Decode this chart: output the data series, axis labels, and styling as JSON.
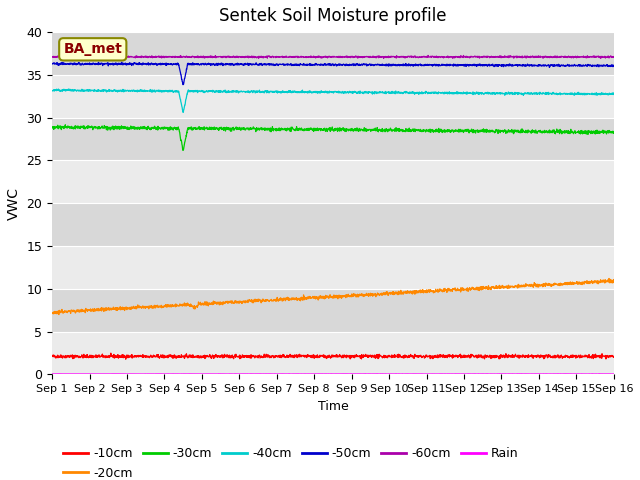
{
  "title": "Sentek Soil Moisture profile",
  "xlabel": "Time",
  "ylabel": "VWC",
  "annotation": "BA_met",
  "ylim": [
    0,
    40
  ],
  "xlim": [
    0,
    15
  ],
  "xtick_labels": [
    "Sep 1",
    "Sep 2",
    "Sep 3",
    "Sep 4",
    "Sep 5",
    "Sep 6",
    "Sep 7",
    "Sep 8",
    "Sep 9",
    "Sep 10",
    "Sep 11",
    "Sep 12",
    "Sep 13",
    "Sep 14",
    "Sep 15",
    "Sep 16"
  ],
  "ytick_vals": [
    0,
    5,
    10,
    15,
    20,
    25,
    30,
    35,
    40
  ],
  "background_color": "#e0e0e0",
  "band_light": "#ebebeb",
  "band_dark": "#d8d8d8",
  "lines": {
    "-10cm": {
      "color": "#ff0000",
      "base": 2.1,
      "trend": 0.0,
      "noise": 0.1,
      "dip_day": null,
      "dip_val": null
    },
    "-20cm": {
      "color": "#ff8800",
      "base": 7.25,
      "trend": 0.245,
      "noise": 0.1,
      "dip_day": 3.8,
      "dip_val": 6.8
    },
    "-30cm": {
      "color": "#00cc00",
      "base": 28.9,
      "trend": -0.04,
      "noise": 0.1,
      "dip_day": 3.5,
      "dip_val": 26.2
    },
    "-40cm": {
      "color": "#00cccc",
      "base": 33.2,
      "trend": -0.03,
      "noise": 0.06,
      "dip_day": 3.5,
      "dip_val": 30.7
    },
    "-50cm": {
      "color": "#0000cc",
      "base": 36.3,
      "trend": -0.015,
      "noise": 0.06,
      "dip_day": 3.5,
      "dip_val": 33.8
    },
    "-60cm": {
      "color": "#aa00aa",
      "base": 37.1,
      "trend": 0.0,
      "noise": 0.05,
      "dip_day": 3.5,
      "dip_val": null
    },
    "Rain": {
      "color": "#ff00ff",
      "base": 0.05,
      "trend": 0.0,
      "noise": 0.005,
      "dip_day": null,
      "dip_val": null
    }
  },
  "legend_order": [
    "-10cm",
    "-20cm",
    "-30cm",
    "-40cm",
    "-50cm",
    "-60cm",
    "Rain"
  ]
}
